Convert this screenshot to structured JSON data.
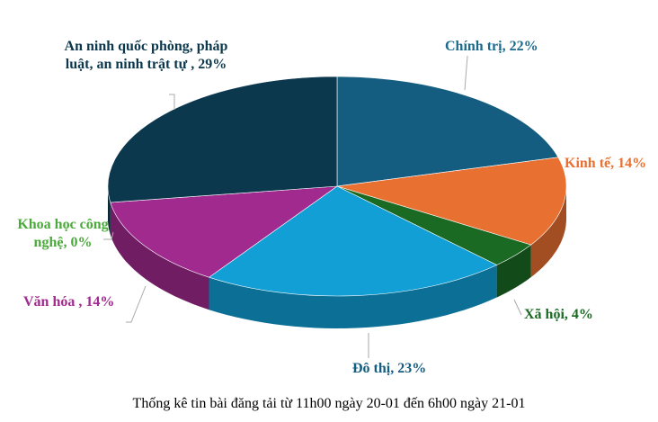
{
  "chart_data": {
    "type": "pie",
    "three_d": true,
    "title": "Thống kê tin bài đăng tải từ 11h00 ngày 20-01 đến 6h00 ngày 21-01",
    "unit": "%",
    "slices": [
      {
        "label": "Chính trị, 22%",
        "name": "Chính trị",
        "value": 22,
        "color": "#155d80",
        "label_color": "#1a6a8c"
      },
      {
        "label": "Kinh tế, 14%",
        "name": "Kinh tế",
        "value": 14,
        "color": "#e87030",
        "label_color": "#e87030"
      },
      {
        "label": "Xã hội, 4%",
        "name": "Xã hội",
        "value": 4,
        "color": "#1b6a24",
        "label_color": "#1b6a24"
      },
      {
        "label": "Đô thị, 23%",
        "name": "Đô thị",
        "value": 23,
        "color": "#119fd6",
        "label_color": "#155d80"
      },
      {
        "label": "Văn hóa , 14%",
        "name": "Văn hóa",
        "value": 14,
        "color": "#a02a8e",
        "label_color": "#a02a8e"
      },
      {
        "label": "Khoa học công nghệ, 0%",
        "name": "Khoa học công nghệ",
        "value": 0,
        "color": "#4aaa3a",
        "label_color": "#4aaa3a"
      },
      {
        "label": "An ninh quốc phòng, pháp luật, an ninh trật tự , 29%",
        "name": "An ninh quốc phòng, pháp luật, an ninh trật tự",
        "value": 29,
        "color": "#0c384e",
        "label_color": "#0c384e"
      }
    ]
  }
}
